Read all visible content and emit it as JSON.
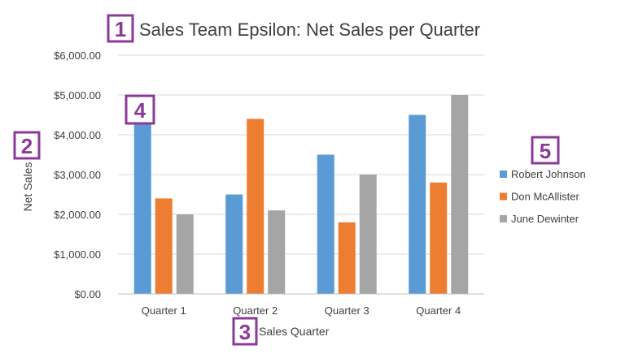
{
  "chart_data": {
    "type": "bar",
    "title": "Sales Team Epsilon: Net Sales per Quarter",
    "xlabel": "Sales Quarter",
    "ylabel": "Net Sales",
    "categories": [
      "Quarter 1",
      "Quarter 2",
      "Quarter 3",
      "Quarter 4"
    ],
    "series": [
      {
        "name": "Robert Johnson",
        "color": "#5b9bd5",
        "values": [
          4300,
          2500,
          3500,
          4500
        ]
      },
      {
        "name": "Don McAllister",
        "color": "#ed7d31",
        "values": [
          2400,
          4400,
          1800,
          2800
        ]
      },
      {
        "name": "June Dewinter",
        "color": "#a5a5a5",
        "values": [
          2000,
          2100,
          3000,
          5000
        ]
      }
    ],
    "ylim": [
      0,
      6000
    ],
    "yticks": [
      "$0.00",
      "$1,000.00",
      "$2,000.00",
      "$3,000.00",
      "$4,000.00",
      "$5,000.00",
      "$6,000.00"
    ],
    "grid": true,
    "legend": "right"
  },
  "callouts": {
    "title": "1",
    "ylabel": "2",
    "xlabel": "3",
    "series": "4",
    "legend": "5",
    "color": "#8b3a99"
  }
}
